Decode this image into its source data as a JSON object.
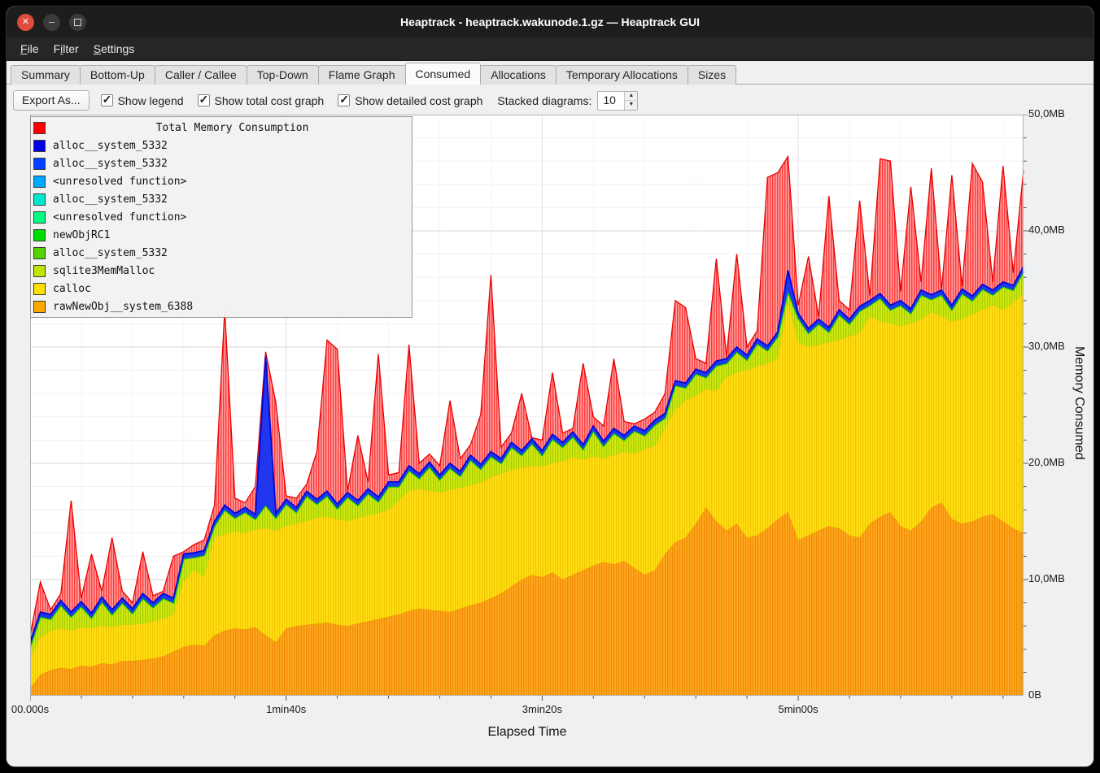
{
  "window": {
    "title": "Heaptrack - heaptrack.wakunode.1.gz — Heaptrack GUI",
    "icons": {
      "close": "✕",
      "minimize": "–"
    }
  },
  "menubar": {
    "items": [
      {
        "pre": "",
        "accel": "F",
        "post": "ile"
      },
      {
        "pre": "F",
        "accel": "i",
        "post": "lter"
      },
      {
        "pre": "",
        "accel": "S",
        "post": "ettings"
      }
    ]
  },
  "tabs": [
    {
      "label": "Summary",
      "active": false
    },
    {
      "label": "Bottom-Up",
      "active": false
    },
    {
      "label": "Caller / Callee",
      "active": false
    },
    {
      "label": "Top-Down",
      "active": false
    },
    {
      "label": "Flame Graph",
      "active": false
    },
    {
      "label": "Consumed",
      "active": true
    },
    {
      "label": "Allocations",
      "active": false
    },
    {
      "label": "Temporary Allocations",
      "active": false
    },
    {
      "label": "Sizes",
      "active": false
    }
  ],
  "toolbar": {
    "export_label": "Export As...",
    "checkboxes": [
      {
        "label": "Show legend",
        "checked": true
      },
      {
        "label": "Show total cost graph",
        "checked": true
      },
      {
        "label": "Show detailed cost graph",
        "checked": true
      }
    ],
    "stacked_label": "Stacked diagrams:",
    "stacked_value": "10"
  },
  "chart": {
    "x_axis_label": "Elapsed Time",
    "y_axis_label": "Memory Consumed",
    "y_ticks": [
      {
        "label": "50,0MB",
        "value": 50
      },
      {
        "label": "40,0MB",
        "value": 40
      },
      {
        "label": "30,0MB",
        "value": 30
      },
      {
        "label": "20,0MB",
        "value": 20
      },
      {
        "label": "10,0MB",
        "value": 10
      },
      {
        "label": "0B",
        "value": 0
      }
    ],
    "x_ticks": [
      {
        "label": "00.000s",
        "seconds": 0
      },
      {
        "label": "1min40s",
        "seconds": 100
      },
      {
        "label": "3min20s",
        "seconds": 200
      },
      {
        "label": "5min00s",
        "seconds": 300
      }
    ],
    "legend": {
      "title": "Total Memory Consumption",
      "title_swatch_color": "#ff0000",
      "entries": [
        {
          "label": "alloc__system_5332",
          "color": "#0000e0"
        },
        {
          "label": "alloc__system_5332",
          "color": "#0040ff"
        },
        {
          "label": "<unresolved function>",
          "color": "#00a8ff"
        },
        {
          "label": "alloc__system_5332",
          "color": "#00e8d0"
        },
        {
          "label": "<unresolved function>",
          "color": "#00ff80"
        },
        {
          "label": "newObjRC1",
          "color": "#00dd00"
        },
        {
          "label": "alloc__system_5332",
          "color": "#55d400"
        },
        {
          "label": "sqlite3MemMalloc",
          "color": "#bfe600"
        },
        {
          "label": "calloc",
          "color": "#ffe000"
        },
        {
          "label": "rawNewObj__system_6388",
          "color": "#ffa800"
        }
      ]
    }
  },
  "chart_data": {
    "type": "area",
    "title": "Total Memory Consumption",
    "xlabel": "Elapsed Time",
    "ylabel": "Memory Consumed",
    "x_unit": "s",
    "y_unit": "MB",
    "xlim": [
      0,
      388
    ],
    "ylim": [
      0,
      50
    ],
    "grid": true,
    "legend_position": "top-left",
    "note": "series values are cumulative stack tops in MB; Total is the spiky red envelope",
    "x": [
      0,
      4,
      8,
      12,
      16,
      20,
      24,
      28,
      32,
      36,
      40,
      44,
      48,
      52,
      56,
      60,
      64,
      68,
      72,
      76,
      80,
      84,
      88,
      92,
      96,
      100,
      104,
      108,
      112,
      116,
      120,
      124,
      128,
      132,
      136,
      140,
      144,
      148,
      152,
      156,
      160,
      164,
      168,
      172,
      176,
      180,
      184,
      188,
      192,
      196,
      200,
      204,
      208,
      212,
      216,
      220,
      224,
      228,
      232,
      236,
      240,
      244,
      248,
      252,
      256,
      260,
      264,
      268,
      272,
      276,
      280,
      284,
      288,
      292,
      296,
      300,
      304,
      308,
      312,
      316,
      320,
      324,
      328,
      332,
      336,
      340,
      344,
      348,
      352,
      356,
      360,
      364,
      368,
      372,
      376,
      380,
      384,
      388
    ],
    "series": [
      {
        "name": "rawNewObj__system_6388",
        "color": "#ffa41b",
        "cumulative_mb": [
          0.6,
          1.8,
          2.2,
          2.4,
          2.3,
          2.6,
          2.5,
          2.8,
          2.7,
          3.0,
          3.0,
          3.1,
          3.2,
          3.4,
          3.8,
          4.2,
          4.4,
          4.3,
          5.2,
          5.6,
          5.8,
          5.7,
          5.9,
          5.2,
          4.6,
          5.8,
          6.0,
          6.1,
          6.2,
          6.3,
          6.1,
          6.0,
          6.2,
          6.4,
          6.6,
          6.8,
          7.0,
          7.3,
          7.5,
          7.4,
          7.3,
          7.2,
          7.5,
          7.8,
          8.0,
          8.4,
          8.8,
          9.4,
          10.0,
          10.4,
          10.2,
          10.6,
          10.0,
          10.4,
          10.8,
          11.2,
          11.5,
          11.3,
          11.6,
          11.0,
          10.4,
          10.8,
          12.2,
          13.2,
          13.6,
          14.8,
          16.2,
          15.0,
          14.2,
          14.8,
          13.6,
          13.8,
          14.4,
          15.2,
          15.8,
          13.4,
          13.8,
          14.2,
          14.6,
          14.4,
          13.8,
          13.6,
          14.8,
          15.4,
          15.8,
          14.6,
          14.2,
          15.0,
          16.2,
          16.6,
          15.2,
          14.8,
          15.0,
          15.4,
          15.6,
          15.0,
          14.4,
          14.0
        ]
      },
      {
        "name": "calloc",
        "color": "#ffdf13",
        "cumulative_mb": [
          3.2,
          5.0,
          5.6,
          5.8,
          5.6,
          5.9,
          5.8,
          6.0,
          5.9,
          6.1,
          6.1,
          6.2,
          6.4,
          6.6,
          7.0,
          9.8,
          10.8,
          10.2,
          13.6,
          13.9,
          14.1,
          14.0,
          14.3,
          14.4,
          14.2,
          14.6,
          14.8,
          15.0,
          15.3,
          15.4,
          15.2,
          15.0,
          15.3,
          15.5,
          15.7,
          16.0,
          16.8,
          17.6,
          17.8,
          17.6,
          17.5,
          17.7,
          17.9,
          18.1,
          18.3,
          18.8,
          19.1,
          19.4,
          19.6,
          19.8,
          19.7,
          20.0,
          20.2,
          20.5,
          20.3,
          20.6,
          20.4,
          20.7,
          21.0,
          20.8,
          21.2,
          21.5,
          23.0,
          24.6,
          25.4,
          25.8,
          26.4,
          26.2,
          27.4,
          27.8,
          28.0,
          28.3,
          28.6,
          29.0,
          33.8,
          30.4,
          30.0,
          30.2,
          30.4,
          30.6,
          30.9,
          31.2,
          32.6,
          32.2,
          32.0,
          31.8,
          32.0,
          32.4,
          33.0,
          32.6,
          32.2,
          32.4,
          32.8,
          33.2,
          33.6,
          33.2,
          33.8,
          34.6
        ]
      },
      {
        "name": "sqlite3MemMalloc + green allocators",
        "color": "#d3ea12",
        "cumulative_mb": [
          4.2,
          6.8,
          6.6,
          7.8,
          6.8,
          7.7,
          6.7,
          8.1,
          7.0,
          8.0,
          7.1,
          8.4,
          7.6,
          8.4,
          8.0,
          11.8,
          11.9,
          12.1,
          14.6,
          16.0,
          15.3,
          15.8,
          15.2,
          16.4,
          15.3,
          16.5,
          15.8,
          17.2,
          16.5,
          17.2,
          16.1,
          17.1,
          16.4,
          17.4,
          16.7,
          18.0,
          18.0,
          19.4,
          18.7,
          19.7,
          18.6,
          19.6,
          18.9,
          20.3,
          19.5,
          20.6,
          20.0,
          21.4,
          20.7,
          21.7,
          20.7,
          22.1,
          21.4,
          22.3,
          21.2,
          22.8,
          21.5,
          22.6,
          22.0,
          22.8,
          22.4,
          23.3,
          23.9,
          26.7,
          26.5,
          27.7,
          27.4,
          28.4,
          28.6,
          29.6,
          28.9,
          30.3,
          29.7,
          30.9,
          34.8,
          32.5,
          31.2,
          32.0,
          31.3,
          32.8,
          32.0,
          33.1,
          33.6,
          34.2,
          33.2,
          33.6,
          32.9,
          34.5,
          34.1,
          34.5,
          33.2,
          34.6,
          34.0,
          35.0,
          34.5,
          35.2,
          34.9,
          36.5
        ]
      },
      {
        "name": "alloc__system_5332 (blue)",
        "color": "#2036ef",
        "cumulative_mb": [
          4.6,
          7.2,
          7.0,
          8.2,
          7.2,
          8.1,
          7.1,
          8.5,
          7.4,
          8.4,
          7.5,
          8.8,
          8.0,
          8.8,
          8.4,
          12.2,
          12.3,
          12.5,
          15.0,
          16.4,
          15.7,
          16.2,
          15.6,
          29.2,
          15.7,
          16.9,
          16.2,
          17.6,
          16.9,
          17.6,
          16.5,
          17.5,
          16.8,
          17.8,
          17.1,
          18.4,
          18.4,
          19.8,
          19.1,
          20.1,
          19.0,
          20.0,
          19.3,
          20.7,
          19.9,
          21.0,
          20.4,
          21.8,
          21.1,
          22.1,
          21.1,
          22.5,
          21.8,
          22.7,
          21.6,
          23.2,
          21.9,
          23.0,
          22.4,
          23.2,
          22.8,
          23.7,
          24.3,
          27.1,
          26.9,
          28.1,
          27.8,
          28.8,
          29.0,
          30.0,
          29.3,
          30.7,
          30.1,
          31.3,
          36.6,
          32.9,
          31.6,
          32.4,
          31.7,
          33.2,
          32.4,
          33.5,
          34.0,
          34.6,
          33.6,
          34.0,
          33.3,
          34.9,
          34.5,
          34.9,
          33.6,
          35.0,
          34.4,
          35.4,
          34.9,
          35.6,
          35.3,
          36.9
        ]
      },
      {
        "name": "Total Memory Consumption",
        "color": "#ff0000",
        "cumulative_mb": [
          5.2,
          9.8,
          7.4,
          8.8,
          16.8,
          8.4,
          12.2,
          9.0,
          13.6,
          9.0,
          8.0,
          12.4,
          8.6,
          9.0,
          12.0,
          12.4,
          13.0,
          13.4,
          16.4,
          33.2,
          17.0,
          16.6,
          18.0,
          29.6,
          25.2,
          17.2,
          17.0,
          18.2,
          21.0,
          30.6,
          29.8,
          17.6,
          22.4,
          18.4,
          29.4,
          19.0,
          19.2,
          30.2,
          20.0,
          20.8,
          19.8,
          25.4,
          20.4,
          21.6,
          24.2,
          36.2,
          21.4,
          22.6,
          26.0,
          22.2,
          22.0,
          27.8,
          22.6,
          23.0,
          28.6,
          24.0,
          23.2,
          29.0,
          23.6,
          23.4,
          23.8,
          24.4,
          26.0,
          34.0,
          33.4,
          29.0,
          28.6,
          37.6,
          29.2,
          38.0,
          30.0,
          31.4,
          44.6,
          45.0,
          46.4,
          33.6,
          37.8,
          32.6,
          43.0,
          34.0,
          33.2,
          42.6,
          34.4,
          46.2,
          46.0,
          34.8,
          43.8,
          35.6,
          45.4,
          35.0,
          44.8,
          35.2,
          45.8,
          44.2,
          35.6,
          45.6,
          36.4,
          45.2
        ]
      }
    ]
  }
}
